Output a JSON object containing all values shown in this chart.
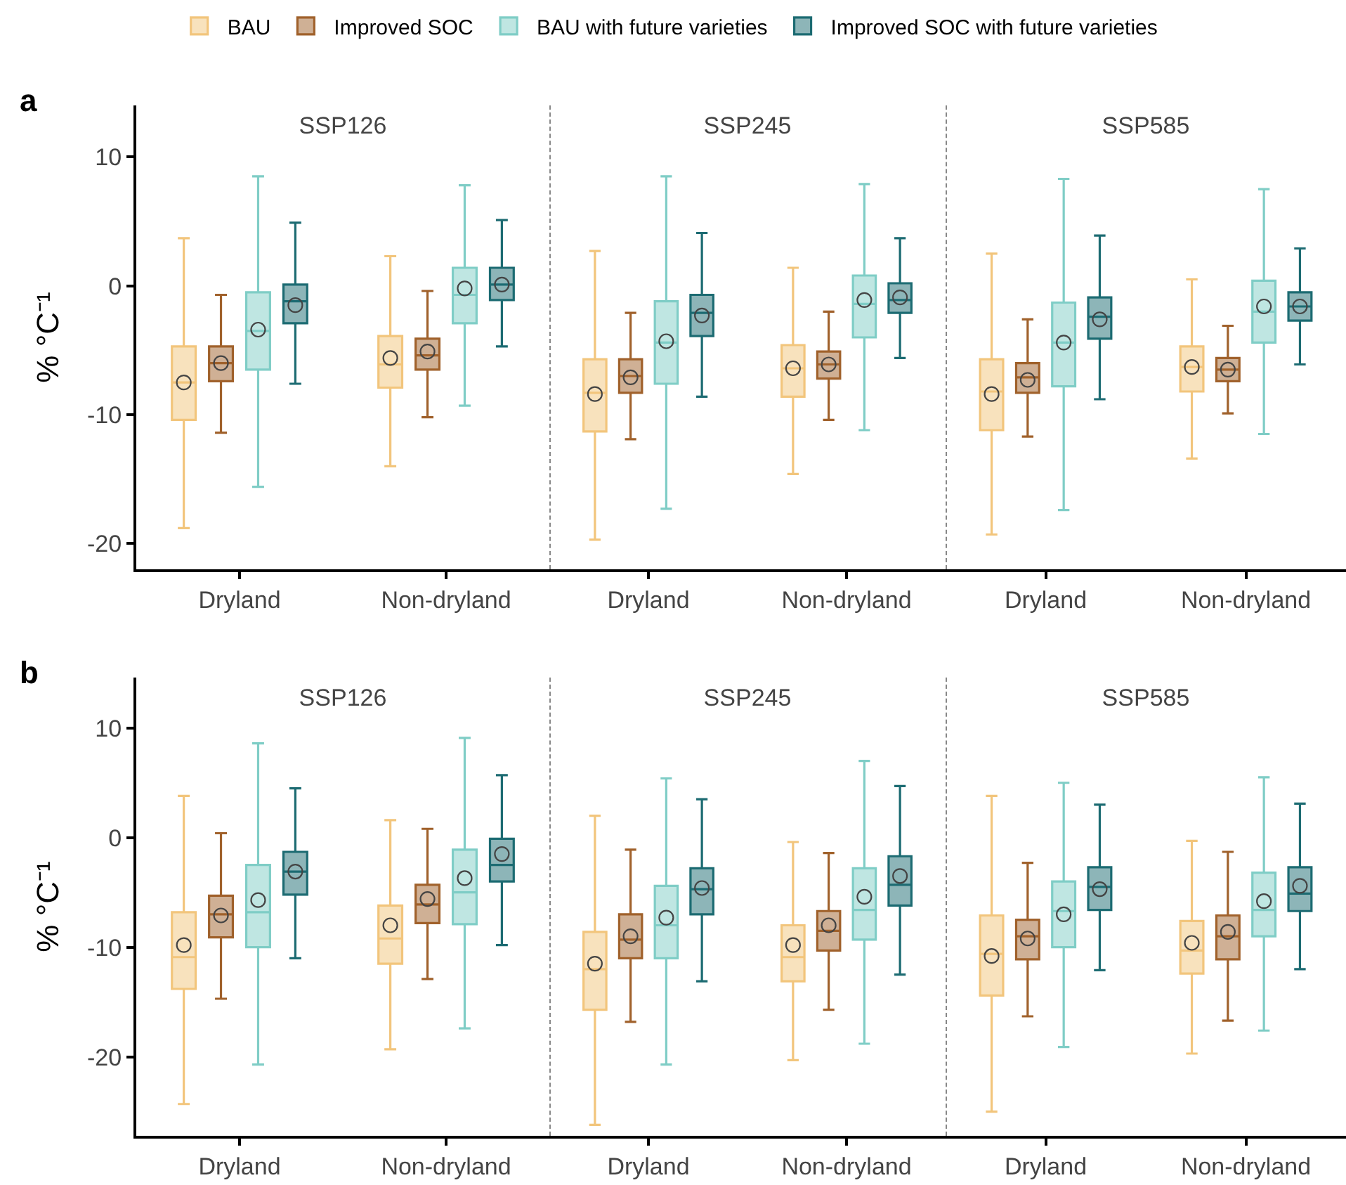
{
  "chart_data": [
    {
      "type": "box",
      "title": "SSP126",
      "annotations": [
        "a"
      ],
      "ylabel": "% °C⁻¹",
      "legend": "top",
      "grid": false,
      "categories": [
        "Dryland",
        "Non-dryland"
      ],
      "ylim": [
        -22,
        14
      ],
      "yticks": [
        -20,
        -10,
        0,
        10
      ],
      "series": [
        {
          "name": "BAU",
          "color": "#f2c57c",
          "boxes": [
            {
              "low": -18.8,
              "q1": -10.4,
              "median": -7.5,
              "q3": -4.7,
              "high": 3.7,
              "mean": -7.5
            },
            {
              "low": -14.0,
              "q1": -7.9,
              "median": -6.1,
              "q3": -3.9,
              "high": 2.3,
              "mean": -5.6
            }
          ]
        },
        {
          "name": "Improved SOC",
          "color": "#a0612b",
          "boxes": [
            {
              "low": -11.4,
              "q1": -7.4,
              "median": -6.0,
              "q3": -4.7,
              "high": -0.7,
              "mean": -6.0
            },
            {
              "low": -10.2,
              "q1": -6.5,
              "median": -5.4,
              "q3": -4.1,
              "high": -0.4,
              "mean": -5.1
            }
          ]
        },
        {
          "name": "BAU with future varieties",
          "color": "#7fcdc6",
          "boxes": [
            {
              "low": -15.6,
              "q1": -6.5,
              "median": -3.5,
              "q3": -0.5,
              "high": 8.5,
              "mean": -3.4
            },
            {
              "low": -9.3,
              "q1": -2.9,
              "median": -0.7,
              "q3": 1.4,
              "high": 7.8,
              "mean": -0.2
            }
          ]
        },
        {
          "name": "Improved SOC with future varieties",
          "color": "#1c6b72",
          "boxes": [
            {
              "low": -7.6,
              "q1": -2.9,
              "median": -1.2,
              "q3": 0.1,
              "high": 4.9,
              "mean": -1.5
            },
            {
              "low": -4.7,
              "q1": -1.1,
              "median": 0.1,
              "q3": 1.4,
              "high": 5.1,
              "mean": 0.1
            }
          ]
        }
      ]
    },
    {
      "type": "box",
      "title": "SSP245",
      "tick_labels": "x",
      "grid": false,
      "categories": [
        "Dryland",
        "Non-dryland"
      ],
      "ylim": [
        -22,
        14
      ],
      "yticks": [
        -20,
        -10,
        0,
        10
      ],
      "series": [
        {
          "color": "#f2c57c",
          "boxes": [
            {
              "low": -19.7,
              "q1": -11.3,
              "median": -8.3,
              "q3": -5.7,
              "high": 2.7,
              "mean": -8.4
            },
            {
              "low": -14.6,
              "q1": -8.6,
              "median": -6.4,
              "q3": -4.6,
              "high": 1.4,
              "mean": -6.4
            }
          ]
        },
        {
          "color": "#a0612b",
          "boxes": [
            {
              "low": -11.9,
              "q1": -8.3,
              "median": -7.0,
              "q3": -5.7,
              "high": -2.1,
              "mean": -7.1
            },
            {
              "low": -10.4,
              "q1": -7.2,
              "median": -6.1,
              "q3": -5.1,
              "high": -2.0,
              "mean": -6.1
            }
          ]
        },
        {
          "color": "#7fcdc6",
          "boxes": [
            {
              "low": -17.3,
              "q1": -7.6,
              "median": -4.4,
              "q3": -1.2,
              "high": 8.5,
              "mean": -4.3
            },
            {
              "low": -11.2,
              "q1": -4.0,
              "median": -1.4,
              "q3": 0.8,
              "high": 7.9,
              "mean": -1.1
            }
          ]
        },
        {
          "color": "#1c6b72",
          "boxes": [
            {
              "low": -8.6,
              "q1": -3.9,
              "median": -2.1,
              "q3": -0.7,
              "high": 4.1,
              "mean": -2.3
            },
            {
              "low": -5.6,
              "q1": -2.1,
              "median": -1.1,
              "q3": 0.2,
              "high": 3.7,
              "mean": -0.9
            }
          ]
        }
      ]
    },
    {
      "type": "box",
      "title": "SSP585",
      "tick_labels": "x",
      "grid": false,
      "categories": [
        "Dryland",
        "Non-dryland"
      ],
      "ylim": [
        -22,
        14
      ],
      "yticks": [
        -20,
        -10,
        0,
        10
      ],
      "series": [
        {
          "color": "#f2c57c",
          "boxes": [
            {
              "low": -19.3,
              "q1": -11.2,
              "median": -8.2,
              "q3": -5.7,
              "high": 2.5,
              "mean": -8.4
            },
            {
              "low": -13.4,
              "q1": -8.2,
              "median": -6.3,
              "q3": -4.7,
              "high": 0.5,
              "mean": -6.3
            }
          ]
        },
        {
          "color": "#a0612b",
          "boxes": [
            {
              "low": -11.7,
              "q1": -8.3,
              "median": -7.1,
              "q3": -6.0,
              "high": -2.6,
              "mean": -7.3
            },
            {
              "low": -9.9,
              "q1": -7.4,
              "median": -6.5,
              "q3": -5.6,
              "high": -3.1,
              "mean": -6.5
            }
          ]
        },
        {
          "color": "#7fcdc6",
          "boxes": [
            {
              "low": -17.4,
              "q1": -7.8,
              "median": -4.4,
              "q3": -1.3,
              "high": 8.3,
              "mean": -4.4
            },
            {
              "low": -11.5,
              "q1": -4.4,
              "median": -2.0,
              "q3": 0.4,
              "high": 7.5,
              "mean": -1.6
            }
          ]
        },
        {
          "color": "#1c6b72",
          "boxes": [
            {
              "low": -8.8,
              "q1": -4.1,
              "median": -2.4,
              "q3": -0.9,
              "high": 3.9,
              "mean": -2.6
            },
            {
              "low": -6.1,
              "q1": -2.7,
              "median": -1.6,
              "q3": -0.5,
              "high": 2.9,
              "mean": -1.6
            }
          ]
        }
      ]
    },
    {
      "type": "box",
      "title": "SSP126",
      "annotations": [
        "b"
      ],
      "ylabel": "% °C⁻¹",
      "grid": false,
      "categories": [
        "Dryland",
        "Non-dryland"
      ],
      "ylim": [
        -27.2,
        14.6
      ],
      "yticks": [
        -20,
        -10,
        0,
        10
      ],
      "series": [
        {
          "color": "#f2c57c",
          "boxes": [
            {
              "low": -24.3,
              "q1": -13.8,
              "median": -10.9,
              "q3": -6.8,
              "high": 3.8,
              "mean": -9.8
            },
            {
              "low": -19.3,
              "q1": -11.5,
              "median": -9.2,
              "q3": -6.2,
              "high": 1.6,
              "mean": -8.0
            }
          ]
        },
        {
          "color": "#a0612b",
          "boxes": [
            {
              "low": -14.7,
              "q1": -9.1,
              "median": -7.0,
              "q3": -5.3,
              "high": 0.4,
              "mean": -7.1
            },
            {
              "low": -12.9,
              "q1": -7.8,
              "median": -6.1,
              "q3": -4.3,
              "high": 0.8,
              "mean": -5.6
            }
          ]
        },
        {
          "color": "#7fcdc6",
          "boxes": [
            {
              "low": -20.7,
              "q1": -10.0,
              "median": -6.8,
              "q3": -2.5,
              "high": 8.6,
              "mean": -5.7
            },
            {
              "low": -17.4,
              "q1": -7.9,
              "median": -5.0,
              "q3": -1.1,
              "high": 9.1,
              "mean": -3.7
            }
          ]
        },
        {
          "color": "#1c6b72",
          "boxes": [
            {
              "low": -11.0,
              "q1": -5.2,
              "median": -3.1,
              "q3": -1.3,
              "high": 4.5,
              "mean": -3.1
            },
            {
              "low": -9.8,
              "q1": -4.0,
              "median": -2.5,
              "q3": -0.1,
              "high": 5.7,
              "mean": -1.5
            }
          ]
        }
      ]
    },
    {
      "type": "box",
      "title": "SSP245",
      "tick_labels": "x",
      "grid": false,
      "categories": [
        "Dryland",
        "Non-dryland"
      ],
      "ylim": [
        -27.2,
        14.6
      ],
      "yticks": [
        -20,
        -10,
        0,
        10
      ],
      "series": [
        {
          "color": "#f2c57c",
          "boxes": [
            {
              "low": -26.2,
              "q1": -15.7,
              "median": -12.0,
              "q3": -8.6,
              "high": 2.0,
              "mean": -11.5
            },
            {
              "low": -20.3,
              "q1": -13.1,
              "median": -10.9,
              "q3": -8.0,
              "high": -0.4,
              "mean": -9.8
            }
          ]
        },
        {
          "color": "#a0612b",
          "boxes": [
            {
              "low": -16.8,
              "q1": -11.0,
              "median": -9.3,
              "q3": -7.0,
              "high": -1.1,
              "mean": -9.0
            },
            {
              "low": -15.7,
              "q1": -10.3,
              "median": -8.5,
              "q3": -6.7,
              "high": -1.4,
              "mean": -8.0
            }
          ]
        },
        {
          "color": "#7fcdc6",
          "boxes": [
            {
              "low": -20.7,
              "q1": -11.0,
              "median": -8.0,
              "q3": -4.4,
              "high": 5.4,
              "mean": -7.3
            },
            {
              "low": -18.8,
              "q1": -9.3,
              "median": -6.6,
              "q3": -2.8,
              "high": 7.0,
              "mean": -5.4
            }
          ]
        },
        {
          "color": "#1c6b72",
          "boxes": [
            {
              "low": -13.1,
              "q1": -7.0,
              "median": -4.7,
              "q3": -2.8,
              "high": 3.5,
              "mean": -4.6
            },
            {
              "low": -12.5,
              "q1": -6.2,
              "median": -4.3,
              "q3": -1.7,
              "high": 4.7,
              "mean": -3.5
            }
          ]
        }
      ]
    },
    {
      "type": "box",
      "title": "SSP585",
      "tick_labels": "x",
      "grid": false,
      "categories": [
        "Dryland",
        "Non-dryland"
      ],
      "ylim": [
        -27.2,
        14.6
      ],
      "yticks": [
        -20,
        -10,
        0,
        10
      ],
      "series": [
        {
          "color": "#f2c57c",
          "boxes": [
            {
              "low": -25.0,
              "q1": -14.4,
              "median": -10.6,
              "q3": -7.1,
              "high": 3.8,
              "mean": -10.8
            },
            {
              "low": -19.7,
              "q1": -12.4,
              "median": -10.3,
              "q3": -7.6,
              "high": -0.3,
              "mean": -9.6
            }
          ]
        },
        {
          "color": "#a0612b",
          "boxes": [
            {
              "low": -16.3,
              "q1": -11.1,
              "median": -9.0,
              "q3": -7.5,
              "high": -2.3,
              "mean": -9.2
            },
            {
              "low": -16.7,
              "q1": -11.1,
              "median": -9.0,
              "q3": -7.1,
              "high": -1.3,
              "mean": -8.6
            }
          ]
        },
        {
          "color": "#7fcdc6",
          "boxes": [
            {
              "low": -19.1,
              "q1": -10.0,
              "median": -6.7,
              "q3": -4.0,
              "high": 5.0,
              "mean": -7.0
            },
            {
              "low": -17.6,
              "q1": -9.0,
              "median": -6.6,
              "q3": -3.2,
              "high": 5.5,
              "mean": -5.8
            }
          ]
        },
        {
          "color": "#1c6b72",
          "boxes": [
            {
              "low": -12.1,
              "q1": -6.6,
              "median": -4.5,
              "q3": -2.7,
              "high": 3.0,
              "mean": -4.7
            },
            {
              "low": -12.0,
              "q1": -6.7,
              "median": -5.1,
              "q3": -2.7,
              "high": 3.1,
              "mean": -4.4
            }
          ]
        }
      ]
    }
  ]
}
